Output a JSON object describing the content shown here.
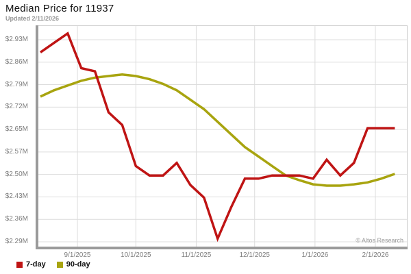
{
  "header": {
    "title": "Median Price for 11937",
    "subtitle": "Updated 2/11/2026"
  },
  "watermark": "© Altos Research",
  "chart_data": {
    "type": "line",
    "title": "Median Price for 11937",
    "updated": "2/11/2026",
    "grid": true,
    "legend_position": "bottom-left",
    "y_axis": {
      "tick_labels": [
        "$2.93M",
        "$2.86M",
        "$2.79M",
        "$2.72M",
        "$2.65M",
        "$2.57M",
        "$2.50M",
        "$2.43M",
        "$2.36M",
        "$2.29M"
      ],
      "range": [
        2.29,
        2.93
      ],
      "unit": "USD millions"
    },
    "x_axis": {
      "tick_labels": [
        "9/1/2025",
        "10/1/2025",
        "11/1/2025",
        "12/1/2025",
        "1/1/2026",
        "2/1/2026"
      ],
      "tick_day_offsets": [
        19,
        49,
        80,
        110,
        141,
        172
      ]
    },
    "dates": [
      "8/13/2025",
      "8/20/2025",
      "8/27/2025",
      "9/3/2025",
      "9/10/2025",
      "9/17/2025",
      "9/24/2025",
      "10/1/2025",
      "10/8/2025",
      "10/15/2025",
      "10/22/2025",
      "10/29/2025",
      "11/5/2025",
      "11/12/2025",
      "11/19/2025",
      "11/26/2025",
      "12/3/2025",
      "12/10/2025",
      "12/17/2025",
      "12/24/2025",
      "12/31/2025",
      "1/7/2026",
      "1/14/2026",
      "1/21/2026",
      "1/28/2026",
      "2/4/2026",
      "2/11/2026"
    ],
    "series": [
      {
        "name": "7-day",
        "color": "#bf1414",
        "values": [
          2.89,
          2.92,
          2.95,
          2.84,
          2.83,
          2.7,
          2.66,
          2.53,
          2.5,
          2.5,
          2.54,
          2.47,
          2.43,
          2.3,
          2.4,
          2.49,
          2.49,
          2.5,
          2.5,
          2.5,
          2.49,
          2.55,
          2.5,
          2.54,
          2.65,
          2.65,
          2.65
        ]
      },
      {
        "name": "90-day",
        "color": "#a8a40f",
        "values": [
          2.75,
          2.77,
          2.785,
          2.8,
          2.81,
          2.815,
          2.82,
          2.815,
          2.805,
          2.79,
          2.77,
          2.74,
          2.71,
          2.67,
          2.63,
          2.59,
          2.56,
          2.53,
          2.5,
          2.485,
          2.472,
          2.468,
          2.468,
          2.472,
          2.478,
          2.49,
          2.505
        ]
      }
    ],
    "styles": {
      "grid_color": "#dcdcdc",
      "frame_color": "#9a9a9a",
      "frame_light_color": "#cfcfcf",
      "tick_label_color": "#7d7d7d"
    }
  }
}
